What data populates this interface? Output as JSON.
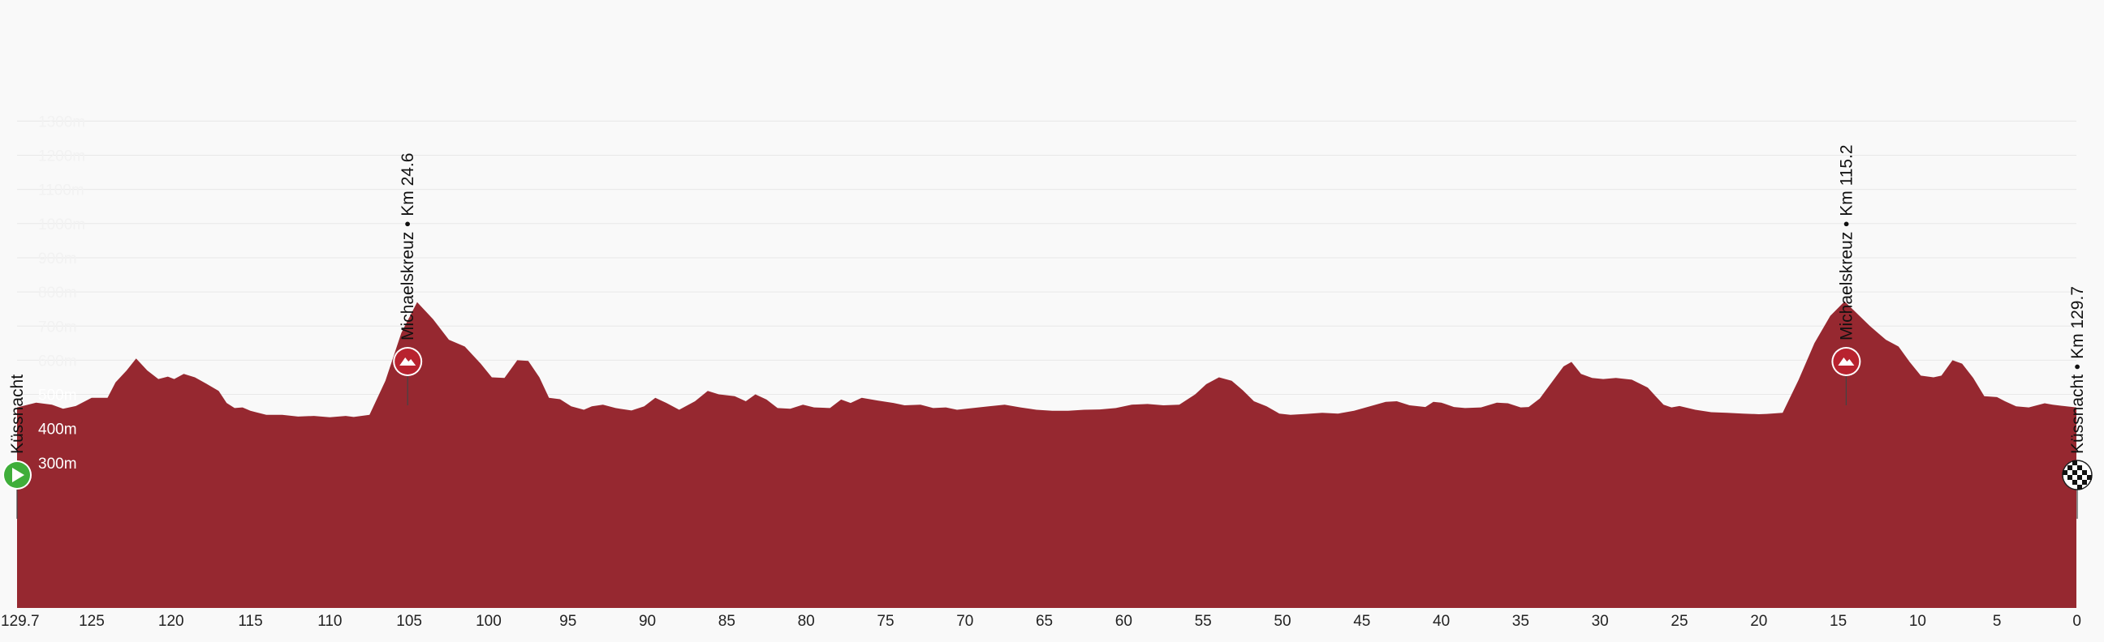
{
  "chart_data": {
    "type": "area",
    "title": "",
    "xlabel": "",
    "ylabel": "",
    "x_unit": "km to finish",
    "y_unit": "m",
    "xlim": [
      129.7,
      0
    ],
    "ylim": [
      230,
      1300
    ],
    "grid": true,
    "y_ticks": [
      {
        "value": 300,
        "label": "300m"
      },
      {
        "value": 400,
        "label": "400m"
      },
      {
        "value": 500,
        "label": "500m"
      },
      {
        "value": 600,
        "label": "600m"
      },
      {
        "value": 700,
        "label": "700m"
      },
      {
        "value": 800,
        "label": "800m"
      },
      {
        "value": 900,
        "label": "900m"
      },
      {
        "value": 1000,
        "label": "1000m"
      },
      {
        "value": 1100,
        "label": "1100m"
      },
      {
        "value": 1200,
        "label": "1200m"
      },
      {
        "value": 1300,
        "label": "1300m"
      }
    ],
    "x_ticks": [
      {
        "value": 129.7,
        "label": "129.7"
      },
      {
        "value": 125,
        "label": "125"
      },
      {
        "value": 120,
        "label": "120"
      },
      {
        "value": 115,
        "label": "115"
      },
      {
        "value": 110,
        "label": "110"
      },
      {
        "value": 105,
        "label": "105"
      },
      {
        "value": 100,
        "label": "100"
      },
      {
        "value": 95,
        "label": "95"
      },
      {
        "value": 90,
        "label": "90"
      },
      {
        "value": 85,
        "label": "85"
      },
      {
        "value": 80,
        "label": "80"
      },
      {
        "value": 75,
        "label": "75"
      },
      {
        "value": 70,
        "label": "70"
      },
      {
        "value": 65,
        "label": "65"
      },
      {
        "value": 60,
        "label": "60"
      },
      {
        "value": 55,
        "label": "55"
      },
      {
        "value": 50,
        "label": "50"
      },
      {
        "value": 45,
        "label": "45"
      },
      {
        "value": 40,
        "label": "40"
      },
      {
        "value": 35,
        "label": "35"
      },
      {
        "value": 30,
        "label": "30"
      },
      {
        "value": 25,
        "label": "25"
      },
      {
        "value": 20,
        "label": "20"
      },
      {
        "value": 15,
        "label": "15"
      },
      {
        "value": 10,
        "label": "10"
      },
      {
        "value": 5,
        "label": "5"
      },
      {
        "value": 0,
        "label": "0"
      }
    ],
    "series": [
      {
        "color": "#962830",
        "points": [
          [
            129.7,
            462
          ],
          [
            128.5,
            476
          ],
          [
            127.5,
            470
          ],
          [
            126.8,
            458
          ],
          [
            126,
            466
          ],
          [
            125,
            490
          ],
          [
            124,
            490
          ],
          [
            123.5,
            535
          ],
          [
            122.8,
            570
          ],
          [
            122.2,
            605
          ],
          [
            121.5,
            570
          ],
          [
            120.8,
            545
          ],
          [
            120.2,
            552
          ],
          [
            119.8,
            545
          ],
          [
            119.2,
            560
          ],
          [
            118.5,
            550
          ],
          [
            117.8,
            532
          ],
          [
            117,
            510
          ],
          [
            116.5,
            475
          ],
          [
            116,
            460
          ],
          [
            115.5,
            462
          ],
          [
            115,
            452
          ],
          [
            114,
            440
          ],
          [
            113,
            440
          ],
          [
            112,
            435
          ],
          [
            111,
            437
          ],
          [
            110,
            433
          ],
          [
            109,
            437
          ],
          [
            108.5,
            434
          ],
          [
            107.5,
            440
          ],
          [
            106.5,
            540
          ],
          [
            105.5,
            680
          ],
          [
            104.5,
            770
          ],
          [
            104,
            745
          ],
          [
            103.5,
            720
          ],
          [
            102.5,
            660
          ],
          [
            101.5,
            640
          ],
          [
            100.5,
            590
          ],
          [
            99.8,
            550
          ],
          [
            99,
            548
          ],
          [
            98.2,
            600
          ],
          [
            97.5,
            598
          ],
          [
            96.8,
            550
          ],
          [
            96.2,
            490
          ],
          [
            95.5,
            486
          ],
          [
            94.8,
            465
          ],
          [
            94,
            455
          ],
          [
            93.5,
            465
          ],
          [
            92.8,
            470
          ],
          [
            92,
            460
          ],
          [
            91,
            453
          ],
          [
            90.2,
            465
          ],
          [
            89.5,
            490
          ],
          [
            88.8,
            475
          ],
          [
            88,
            455
          ],
          [
            87,
            480
          ],
          [
            86.2,
            510
          ],
          [
            85.5,
            500
          ],
          [
            84.5,
            495
          ],
          [
            83.8,
            480
          ],
          [
            83.2,
            500
          ],
          [
            82.5,
            485
          ],
          [
            81.8,
            460
          ],
          [
            81,
            458
          ],
          [
            80.2,
            470
          ],
          [
            79.5,
            462
          ],
          [
            78.5,
            460
          ],
          [
            77.8,
            485
          ],
          [
            77.2,
            475
          ],
          [
            76.5,
            490
          ],
          [
            75.5,
            482
          ],
          [
            74.5,
            475
          ],
          [
            73.8,
            468
          ],
          [
            72.8,
            470
          ],
          [
            72,
            460
          ],
          [
            71.2,
            462
          ],
          [
            70.5,
            455
          ],
          [
            69.5,
            460
          ],
          [
            68.5,
            465
          ],
          [
            67.5,
            470
          ],
          [
            66.5,
            462
          ],
          [
            65.5,
            455
          ],
          [
            64.5,
            452
          ],
          [
            63.5,
            452
          ],
          [
            62.5,
            455
          ],
          [
            61.5,
            456
          ],
          [
            60.5,
            460
          ],
          [
            59.5,
            470
          ],
          [
            58.5,
            472
          ],
          [
            57.5,
            468
          ],
          [
            56.5,
            470
          ],
          [
            55.5,
            500
          ],
          [
            54.8,
            530
          ],
          [
            54,
            550
          ],
          [
            53.2,
            540
          ],
          [
            52.5,
            512
          ],
          [
            51.8,
            480
          ],
          [
            51,
            465
          ],
          [
            50.2,
            444
          ],
          [
            49.5,
            440
          ],
          [
            48.5,
            443
          ],
          [
            47.5,
            446
          ],
          [
            46.5,
            444
          ],
          [
            45.5,
            452
          ],
          [
            44.5,
            465
          ],
          [
            43.5,
            478
          ],
          [
            42.8,
            480
          ],
          [
            42,
            468
          ],
          [
            41,
            463
          ],
          [
            40.5,
            478
          ],
          [
            40,
            476
          ],
          [
            39.2,
            463
          ],
          [
            38.5,
            460
          ],
          [
            37.5,
            462
          ],
          [
            36.5,
            476
          ],
          [
            35.8,
            474
          ],
          [
            35,
            462
          ],
          [
            34.5,
            463
          ],
          [
            33.8,
            488
          ],
          [
            33,
            538
          ],
          [
            32.3,
            582
          ],
          [
            31.8,
            595
          ],
          [
            31.2,
            560
          ],
          [
            30.5,
            548
          ],
          [
            29.8,
            545
          ],
          [
            29,
            548
          ],
          [
            28,
            543
          ],
          [
            27,
            520
          ],
          [
            26.5,
            495
          ],
          [
            26,
            470
          ],
          [
            25.5,
            462
          ],
          [
            25,
            466
          ],
          [
            24,
            455
          ],
          [
            23,
            448
          ],
          [
            22,
            446
          ],
          [
            21,
            444
          ],
          [
            20,
            442
          ],
          [
            19.5,
            443
          ],
          [
            18.5,
            446
          ],
          [
            17.5,
            542
          ],
          [
            16.5,
            650
          ],
          [
            15.5,
            730
          ],
          [
            14.6,
            772
          ],
          [
            14,
            745
          ],
          [
            13,
            700
          ],
          [
            12.5,
            680
          ],
          [
            12,
            660
          ],
          [
            11.2,
            640
          ],
          [
            10.5,
            595
          ],
          [
            9.8,
            555
          ],
          [
            9,
            550
          ],
          [
            8.5,
            555
          ],
          [
            7.8,
            600
          ],
          [
            7.2,
            590
          ],
          [
            6.5,
            548
          ],
          [
            5.8,
            495
          ],
          [
            5,
            492
          ],
          [
            4.5,
            480
          ],
          [
            3.8,
            465
          ],
          [
            3,
            462
          ],
          [
            2,
            474
          ],
          [
            1.5,
            470
          ],
          [
            0.8,
            466
          ],
          [
            0,
            462
          ]
        ]
      }
    ],
    "waypoints": [
      {
        "km": 129.7,
        "label": "Küssnacht",
        "icon": "start-icon"
      },
      {
        "km": 105.1,
        "label": "Michaelskreuz • Km 24.6",
        "icon": "mountain-climb-icon"
      },
      {
        "km": 14.5,
        "label": "Michaelskreuz • Km 115.2",
        "icon": "mountain-climb-icon"
      },
      {
        "km": 0,
        "label": "Küssnacht • Km 129.7",
        "icon": "finish-flag-icon"
      }
    ]
  }
}
